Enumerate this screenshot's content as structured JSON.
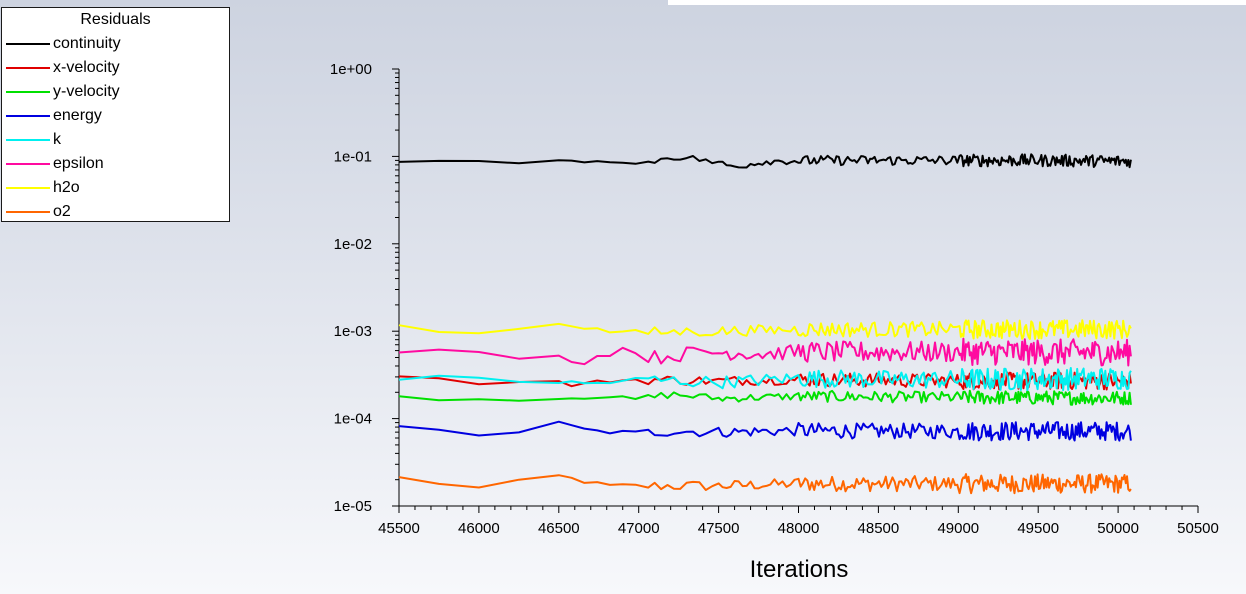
{
  "chart_data": {
    "type": "line",
    "title": "",
    "xlabel": "Iterations",
    "ylabel": "",
    "yscale": "log",
    "xlim": [
      45500,
      50500
    ],
    "ylim": [
      1e-05,
      1
    ],
    "x_ticks": [
      "45500",
      "46000",
      "46500",
      "47000",
      "47500",
      "48000",
      "48500",
      "49000",
      "49500",
      "50000",
      "50500"
    ],
    "y_ticks": [
      "1e+00",
      "1e-01",
      "1e-02",
      "1e-03",
      "1e-04",
      "1e-05"
    ],
    "legend": {
      "title": "Residuals",
      "position": "top-left"
    },
    "x_range_data": [
      45500,
      50080
    ],
    "series": [
      {
        "name": "continuity",
        "color": "#000000",
        "points": [
          [
            45500,
            0.086
          ],
          [
            46000,
            0.086
          ],
          [
            46500,
            0.087
          ],
          [
            46800,
            0.09
          ],
          [
            47000,
            0.08
          ],
          [
            47200,
            0.1
          ],
          [
            47400,
            0.092
          ],
          [
            47600,
            0.076
          ],
          [
            47800,
            0.088
          ],
          [
            48200,
            0.09
          ],
          [
            48600,
            0.09
          ],
          [
            49000,
            0.09
          ],
          [
            49500,
            0.09
          ],
          [
            50080,
            0.088
          ]
        ],
        "noise": 0.07
      },
      {
        "name": "x-velocity",
        "color": "#e00000",
        "points": [
          [
            45500,
            0.00031
          ],
          [
            46000,
            0.00026
          ],
          [
            46500,
            0.00026
          ],
          [
            46600,
            0.00024
          ],
          [
            46800,
            0.00027
          ],
          [
            47000,
            0.00028
          ],
          [
            47500,
            0.00027
          ],
          [
            48000,
            0.00028
          ],
          [
            49000,
            0.00027
          ],
          [
            50080,
            0.00027
          ]
        ],
        "noise": 0.1
      },
      {
        "name": "y-velocity",
        "color": "#00e000",
        "points": [
          [
            45500,
            0.000175
          ],
          [
            46000,
            0.000165
          ],
          [
            46500,
            0.00017
          ],
          [
            46800,
            0.00018
          ],
          [
            47000,
            0.000165
          ],
          [
            47200,
            0.00019
          ],
          [
            47500,
            0.00017
          ],
          [
            48000,
            0.00018
          ],
          [
            49000,
            0.000175
          ],
          [
            50080,
            0.000172
          ]
        ],
        "noise": 0.08
      },
      {
        "name": "energy",
        "color": "#0000e0",
        "points": [
          [
            45500,
            7.8e-05
          ],
          [
            46000,
            6.6e-05
          ],
          [
            46250,
            7.1e-05
          ],
          [
            46500,
            8.8e-05
          ],
          [
            46700,
            7.2e-05
          ],
          [
            47000,
            6.8e-05
          ],
          [
            47200,
            7.2e-05
          ],
          [
            47500,
            7e-05
          ],
          [
            48000,
            7.3e-05
          ],
          [
            48500,
            7.2e-05
          ],
          [
            49000,
            7.2e-05
          ],
          [
            50080,
            7.2e-05
          ]
        ],
        "noise": 0.11
      },
      {
        "name": "k",
        "color": "#00f0f0",
        "points": [
          [
            45500,
            0.00029
          ],
          [
            46000,
            0.00029
          ],
          [
            46500,
            0.00026
          ],
          [
            46700,
            0.00025
          ],
          [
            47000,
            0.00028
          ],
          [
            47500,
            0.00026
          ],
          [
            48000,
            0.00029
          ],
          [
            48500,
            0.00028
          ],
          [
            49000,
            0.00028
          ],
          [
            50080,
            0.00029
          ]
        ],
        "noise": 0.13
      },
      {
        "name": "epsilon",
        "color": "#ff0aa0",
        "points": [
          [
            45500,
            0.0006
          ],
          [
            46000,
            0.00055
          ],
          [
            46500,
            0.0005
          ],
          [
            46650,
            0.00045
          ],
          [
            46900,
            0.00063
          ],
          [
            47100,
            0.0005
          ],
          [
            47400,
            0.00058
          ],
          [
            47800,
            0.00055
          ],
          [
            48000,
            0.00058
          ],
          [
            48500,
            0.00058
          ],
          [
            49000,
            0.00058
          ],
          [
            50080,
            0.00057
          ]
        ],
        "noise": 0.15
      },
      {
        "name": "h2o",
        "color": "#ffff00",
        "points": [
          [
            45500,
            0.00115
          ],
          [
            46000,
            0.00093
          ],
          [
            46500,
            0.00125
          ],
          [
            46800,
            0.001
          ],
          [
            47000,
            0.00097
          ],
          [
            47500,
            0.001
          ],
          [
            48000,
            0.00105
          ],
          [
            48500,
            0.00105
          ],
          [
            49000,
            0.00105
          ],
          [
            50080,
            0.00105
          ]
        ],
        "noise": 0.11
      },
      {
        "name": "o2",
        "color": "#ff6600",
        "points": [
          [
            45500,
            2.1e-05
          ],
          [
            46000,
            1.6e-05
          ],
          [
            46500,
            2.2e-05
          ],
          [
            46800,
            1.7e-05
          ],
          [
            47000,
            1.7e-05
          ],
          [
            47500,
            1.7e-05
          ],
          [
            48000,
            1.8e-05
          ],
          [
            48500,
            1.8e-05
          ],
          [
            49000,
            1.8e-05
          ],
          [
            50080,
            1.8e-05
          ]
        ],
        "noise": 0.11
      }
    ]
  }
}
